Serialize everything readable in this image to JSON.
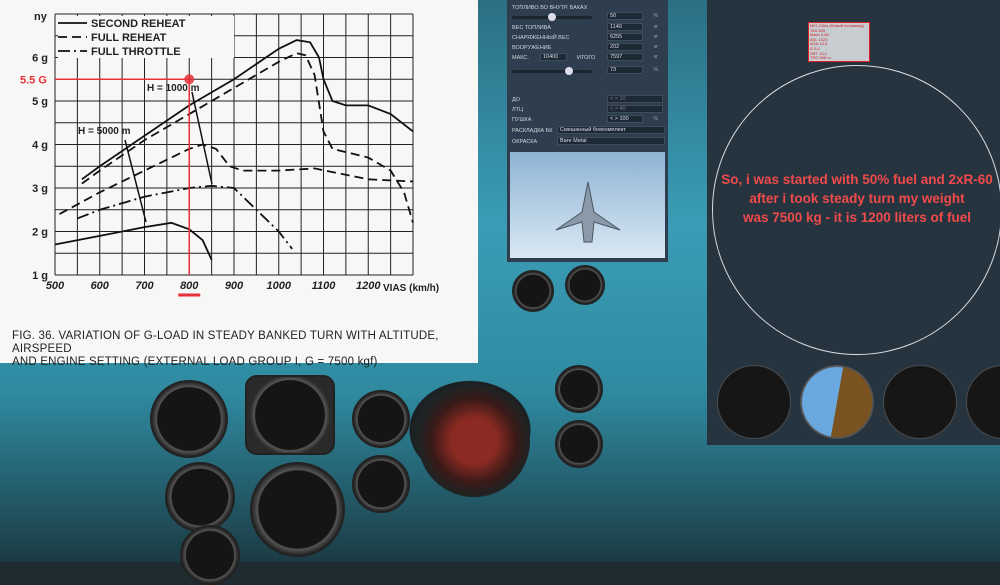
{
  "chart_data": {
    "type": "line",
    "title": "",
    "caption_line1": "FIG. 36. VARIATION OF G-LOAD IN STEADY BANKED TURN WITH ALTITUDE, AIRSPEED",
    "caption_line2": "AND ENGINE SETTING  (EXTERNAL LOAD GROUP I, G = 7500 kgf)",
    "ylabel": "ny",
    "xlabel": "VIAS (km/h)",
    "xlim": [
      500,
      1300
    ],
    "ylim": [
      1,
      7
    ],
    "xticks": [
      500,
      600,
      700,
      800,
      900,
      1000,
      1100,
      1200
    ],
    "yticks": [
      1,
      2,
      3,
      4,
      5,
      6
    ],
    "ytick_suffix": " g",
    "grid": true,
    "legend": [
      "SECOND REHEAT",
      "FULL REHEAT",
      "FULL THROTTLE"
    ],
    "legend_position": "top-left",
    "annotations": {
      "h1000": "H = 1000 m",
      "h5000": "H = 5000 m",
      "marker_label": "5.5 G",
      "marker_x": 800,
      "marker_y": 5.5,
      "marker_color": "#e8303a"
    },
    "series": [
      {
        "name": "SECOND REHEAT",
        "altitude": "H = 1000 m",
        "style": "solid",
        "x": [
          560,
          600,
          700,
          800,
          900,
          1000,
          1040,
          1070,
          1090,
          1100,
          1120,
          1150,
          1200,
          1250,
          1300
        ],
        "y": [
          3.2,
          3.5,
          4.2,
          4.9,
          5.5,
          6.2,
          6.4,
          6.35,
          6.0,
          5.5,
          5.0,
          4.9,
          4.9,
          4.7,
          4.3
        ]
      },
      {
        "name": "FULL REHEAT",
        "altitude": "H = 1000 m",
        "style": "dashed",
        "x": [
          560,
          600,
          700,
          800,
          900,
          1000,
          1040,
          1060,
          1080,
          1100,
          1120,
          1200,
          1250,
          1280,
          1300
        ],
        "y": [
          3.1,
          3.4,
          4.1,
          4.7,
          5.3,
          5.9,
          6.1,
          6.05,
          5.6,
          4.3,
          3.9,
          3.7,
          3.4,
          2.9,
          2.2
        ]
      },
      {
        "name": "FULL REHEAT",
        "altitude": "H = 5000 m",
        "style": "dashed",
        "x": [
          510,
          600,
          700,
          800,
          830,
          860,
          890,
          920,
          1000,
          1080,
          1200,
          1300
        ],
        "y": [
          2.4,
          2.9,
          3.4,
          3.9,
          4.0,
          3.9,
          3.5,
          3.4,
          3.4,
          3.45,
          3.2,
          3.15
        ]
      },
      {
        "name": "FULL THROTTLE",
        "altitude": "H = 1000 m",
        "style": "dashdot",
        "x": [
          550,
          600,
          700,
          800,
          850,
          900,
          950,
          1000,
          1030
        ],
        "y": [
          2.3,
          2.5,
          2.8,
          3.0,
          3.05,
          3.0,
          2.5,
          2.0,
          1.6
        ]
      },
      {
        "name": "SECOND REHEAT",
        "altitude": "H = 5000 m",
        "style": "solid",
        "x": [
          500,
          600,
          700,
          760,
          800,
          830,
          850
        ],
        "y": [
          1.7,
          1.9,
          2.1,
          2.2,
          2.05,
          1.8,
          1.35
        ]
      }
    ]
  },
  "loadout": {
    "fuel_internal_label": "ТОПЛИВО ВО ВНУТР. БАКАХ",
    "fuel_internal_value": "50",
    "fuel_pct": 50,
    "unit_pct": "%",
    "fuel_weight_label": "ВЕС ТОПЛИВА",
    "fuel_weight_value": "1140",
    "unit_kg": "кг",
    "empty_weight_label": "СНАРЯЖЕННЫЙ ВЕС",
    "empty_weight_value": "6255",
    "weapons_label": "ВООРУЖЕНИЕ",
    "weapons_value": "202",
    "max_label": "МАКС.",
    "max_value": "10400",
    "total_label": "ИТОГО",
    "total_value": "7597",
    "total_pct_value": "73",
    "total_pct": 73,
    "do_label": "ДО",
    "do_value": "< >  10",
    "ltc_label": "ЛТЦ",
    "ltc_value": "< >  40",
    "gun_label": "ПУШКА",
    "gun_value": "< >  100",
    "ammo_label": "РАСКЛАДКА БК",
    "ammo_value": "Смешанный боекомплект",
    "paint_label": "ОКРАСКА",
    "paint_value": "Bare Metal"
  },
  "debug": {
    "lines": [
      "MiG-21bis (Новый полиамид)",
      "TAS 825",
      "Mach 0,68",
      "ASL 1023",
      "AOA 13,5",
      "G 5,4",
      "SRT 13,2",
      "TRO 996 m"
    ]
  },
  "note": {
    "line1": "So, i was started with 50% fuel and 2xR-60",
    "line2": "after i took steady turn my weight",
    "line3": "was 7500 kg - it is 1200 liters of fuel",
    "color": "#f04a4a"
  }
}
